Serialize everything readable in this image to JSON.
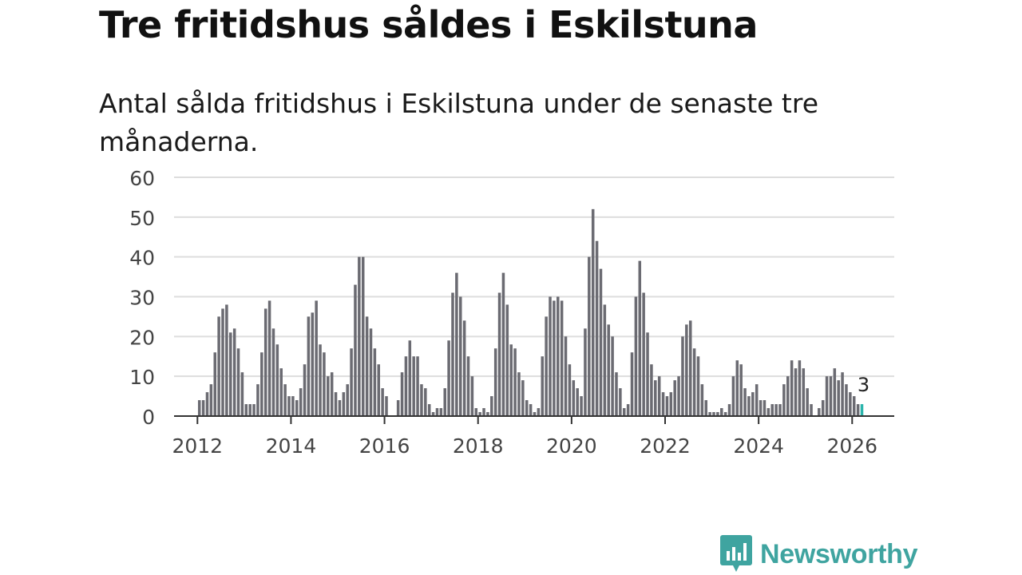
{
  "title": "Tre fritidshus såldes i Eskilstuna",
  "subtitle": "Antal sålda fritidshus i Eskilstuna under de senaste tre månaderna.",
  "brand": {
    "name": "Newsworthy",
    "color": "#3fa4a0"
  },
  "colors": {
    "bar": "#6b6b72",
    "highlight": "#2bb5ac",
    "grid": "#dddddd",
    "axis": "#333333"
  },
  "chart_data": {
    "type": "bar",
    "title": "Tre fritidshus såldes i Eskilstuna",
    "xlabel": "",
    "ylabel": "",
    "ylim": [
      0,
      60
    ],
    "yticks": [
      0,
      10,
      20,
      30,
      40,
      50,
      60
    ],
    "xlim": [
      2011.5,
      2026.9
    ],
    "xticks": [
      "2012",
      "2014",
      "2016",
      "2018",
      "2020",
      "2022",
      "2024",
      "2026"
    ],
    "x_start": "2012-01",
    "values": [
      4,
      4,
      6,
      8,
      16,
      25,
      27,
      28,
      21,
      22,
      17,
      11,
      3,
      3,
      3,
      8,
      16,
      27,
      29,
      22,
      18,
      12,
      8,
      5,
      5,
      4,
      7,
      13,
      25,
      26,
      29,
      18,
      16,
      10,
      11,
      6,
      4,
      6,
      8,
      17,
      33,
      40,
      40,
      25,
      22,
      17,
      13,
      7,
      5,
      0,
      0,
      4,
      11,
      15,
      19,
      15,
      15,
      8,
      7,
      3,
      1,
      2,
      2,
      7,
      19,
      31,
      36,
      30,
      24,
      15,
      10,
      2,
      1,
      2,
      1,
      5,
      17,
      31,
      36,
      28,
      18,
      17,
      11,
      9,
      4,
      3,
      1,
      2,
      15,
      25,
      30,
      29,
      30,
      29,
      20,
      13,
      9,
      7,
      5,
      22,
      40,
      52,
      44,
      37,
      28,
      23,
      20,
      11,
      7,
      2,
      3,
      16,
      30,
      39,
      31,
      21,
      13,
      9,
      10,
      6,
      5,
      6,
      9,
      10,
      20,
      23,
      24,
      17,
      15,
      8,
      4,
      1,
      1,
      1,
      2,
      1,
      3,
      10,
      14,
      13,
      7,
      5,
      6,
      8,
      4,
      4,
      2,
      3,
      3,
      3,
      8,
      10,
      14,
      12,
      14,
      12,
      7,
      3,
      0,
      2,
      4,
      10,
      10,
      12,
      9,
      11,
      8,
      6,
      5,
      3,
      3
    ],
    "highlight_last": true,
    "annotation": {
      "label": "3",
      "value": 3
    }
  }
}
